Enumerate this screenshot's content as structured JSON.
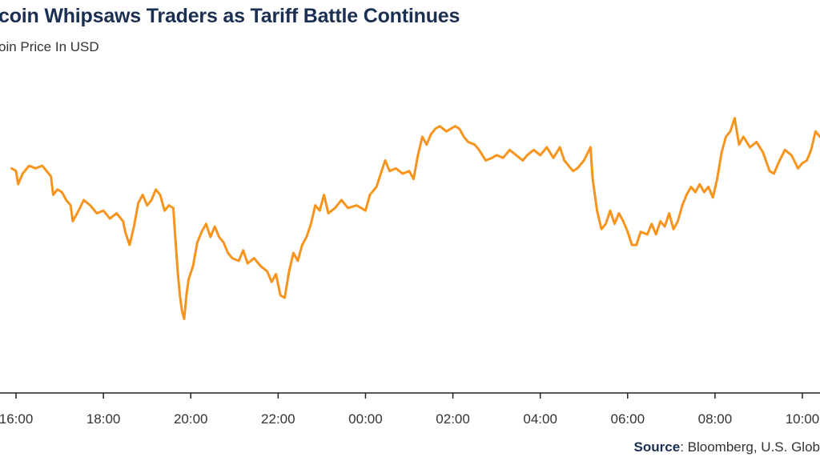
{
  "header": {
    "title": "coin Whipsaws Traders as Tariff Battle Continues",
    "subtitle": "oin Price In USD"
  },
  "footer": {
    "source_label": "Source",
    "source_text": ": Bloomberg, U.S. Glob"
  },
  "colors": {
    "line": "#f7941d",
    "axis": "#222222",
    "title": "#1b2f52"
  },
  "chart_data": {
    "type": "line",
    "title": "coin Whipsaws Traders as Tariff Battle Continues",
    "subtitle": "oin Price In USD",
    "xlabel": "",
    "ylabel": "",
    "x_ticks": [
      {
        "label": "16:00",
        "hours": 16
      },
      {
        "label": "18:00",
        "hours": 18
      },
      {
        "label": "20:00",
        "hours": 20
      },
      {
        "label": "22:00",
        "hours": 22
      },
      {
        "label": "00:00",
        "hours": 24
      },
      {
        "label": "02:00",
        "hours": 26
      },
      {
        "label": "04:00",
        "hours": 28
      },
      {
        "label": "06:00",
        "hours": 30
      },
      {
        "label": "08:00",
        "hours": 32
      },
      {
        "label": "10:00",
        "hours": 34
      }
    ],
    "x_range": [
      15.9,
      34.5
    ],
    "ylim": [
      0,
      100
    ],
    "grid": false,
    "legend": "none",
    "series": [
      {
        "points": [
          [
            15.9,
            72
          ],
          [
            16.0,
            71
          ],
          [
            16.05,
            66
          ],
          [
            16.15,
            70
          ],
          [
            16.3,
            73
          ],
          [
            16.45,
            72
          ],
          [
            16.6,
            73
          ],
          [
            16.7,
            71
          ],
          [
            16.8,
            69
          ],
          [
            16.85,
            62
          ],
          [
            16.95,
            64
          ],
          [
            17.05,
            63
          ],
          [
            17.15,
            60
          ],
          [
            17.25,
            58
          ],
          [
            17.3,
            52
          ],
          [
            17.4,
            55
          ],
          [
            17.55,
            60
          ],
          [
            17.7,
            58
          ],
          [
            17.85,
            55
          ],
          [
            18.0,
            56
          ],
          [
            18.15,
            53
          ],
          [
            18.3,
            55
          ],
          [
            18.45,
            52
          ],
          [
            18.5,
            48
          ],
          [
            18.6,
            43
          ],
          [
            18.7,
            50
          ],
          [
            18.8,
            59
          ],
          [
            18.9,
            62
          ],
          [
            19.0,
            58
          ],
          [
            19.1,
            60
          ],
          [
            19.2,
            64
          ],
          [
            19.3,
            62
          ],
          [
            19.4,
            56
          ],
          [
            19.5,
            58
          ],
          [
            19.6,
            57
          ],
          [
            19.65,
            45
          ],
          [
            19.7,
            33
          ],
          [
            19.75,
            24
          ],
          [
            19.8,
            18
          ],
          [
            19.85,
            15
          ],
          [
            19.9,
            24
          ],
          [
            19.95,
            30
          ],
          [
            20.05,
            35
          ],
          [
            20.15,
            44
          ],
          [
            20.25,
            48
          ],
          [
            20.35,
            51
          ],
          [
            20.45,
            46
          ],
          [
            20.55,
            50
          ],
          [
            20.65,
            46
          ],
          [
            20.75,
            44
          ],
          [
            20.85,
            40
          ],
          [
            20.95,
            38
          ],
          [
            21.1,
            37
          ],
          [
            21.2,
            41
          ],
          [
            21.3,
            36
          ],
          [
            21.45,
            38
          ],
          [
            21.6,
            35
          ],
          [
            21.75,
            33
          ],
          [
            21.85,
            29
          ],
          [
            21.95,
            32
          ],
          [
            22.05,
            24
          ],
          [
            22.15,
            23
          ],
          [
            22.25,
            33
          ],
          [
            22.35,
            40
          ],
          [
            22.45,
            37
          ],
          [
            22.55,
            43
          ],
          [
            22.65,
            46
          ],
          [
            22.75,
            51
          ],
          [
            22.85,
            58
          ],
          [
            22.95,
            56
          ],
          [
            23.05,
            62
          ],
          [
            23.15,
            55
          ],
          [
            23.3,
            57
          ],
          [
            23.45,
            60
          ],
          [
            23.6,
            57
          ],
          [
            23.8,
            58
          ],
          [
            24.0,
            56
          ],
          [
            24.1,
            62
          ],
          [
            24.25,
            65
          ],
          [
            24.35,
            70
          ],
          [
            24.45,
            75
          ],
          [
            24.55,
            71
          ],
          [
            24.7,
            72
          ],
          [
            24.85,
            70
          ],
          [
            25.0,
            71
          ],
          [
            25.1,
            68
          ],
          [
            25.2,
            77
          ],
          [
            25.3,
            84
          ],
          [
            25.4,
            81
          ],
          [
            25.5,
            85
          ],
          [
            25.6,
            87
          ],
          [
            25.7,
            88
          ],
          [
            25.85,
            86
          ],
          [
            25.95,
            87
          ],
          [
            26.05,
            88
          ],
          [
            26.15,
            87
          ],
          [
            26.25,
            84
          ],
          [
            26.35,
            82
          ],
          [
            26.5,
            81
          ],
          [
            26.6,
            79
          ],
          [
            26.75,
            75
          ],
          [
            26.9,
            76
          ],
          [
            27.0,
            77
          ],
          [
            27.15,
            76
          ],
          [
            27.3,
            79
          ],
          [
            27.45,
            77
          ],
          [
            27.6,
            75
          ],
          [
            27.7,
            77
          ],
          [
            27.85,
            79
          ],
          [
            28.0,
            77
          ],
          [
            28.15,
            80
          ],
          [
            28.3,
            76
          ],
          [
            28.45,
            80
          ],
          [
            28.55,
            75
          ],
          [
            28.65,
            73
          ],
          [
            28.75,
            71
          ],
          [
            28.85,
            72
          ],
          [
            29.0,
            75
          ],
          [
            29.15,
            80
          ],
          [
            29.2,
            68
          ],
          [
            29.3,
            56
          ],
          [
            29.4,
            49
          ],
          [
            29.5,
            51
          ],
          [
            29.6,
            56
          ],
          [
            29.7,
            51
          ],
          [
            29.8,
            55
          ],
          [
            29.9,
            52
          ],
          [
            30.0,
            48
          ],
          [
            30.1,
            43
          ],
          [
            30.2,
            43
          ],
          [
            30.3,
            48
          ],
          [
            30.45,
            47
          ],
          [
            30.55,
            51
          ],
          [
            30.65,
            47
          ],
          [
            30.75,
            52
          ],
          [
            30.85,
            50
          ],
          [
            30.95,
            55
          ],
          [
            31.05,
            49
          ],
          [
            31.15,
            52
          ],
          [
            31.25,
            58
          ],
          [
            31.35,
            62
          ],
          [
            31.45,
            65
          ],
          [
            31.55,
            63
          ],
          [
            31.65,
            66
          ],
          [
            31.75,
            63
          ],
          [
            31.85,
            65
          ],
          [
            31.95,
            61
          ],
          [
            32.05,
            68
          ],
          [
            32.15,
            78
          ],
          [
            32.25,
            84
          ],
          [
            32.35,
            86
          ],
          [
            32.45,
            91
          ],
          [
            32.55,
            81
          ],
          [
            32.65,
            84
          ],
          [
            32.8,
            80
          ],
          [
            32.95,
            82
          ],
          [
            33.1,
            78
          ],
          [
            33.25,
            71
          ],
          [
            33.35,
            70
          ],
          [
            33.45,
            74
          ],
          [
            33.6,
            79
          ],
          [
            33.75,
            77
          ],
          [
            33.9,
            72
          ],
          [
            34.0,
            74
          ],
          [
            34.1,
            75
          ],
          [
            34.2,
            79
          ],
          [
            34.3,
            86
          ],
          [
            34.4,
            84
          ],
          [
            34.5,
            83
          ]
        ]
      }
    ]
  }
}
